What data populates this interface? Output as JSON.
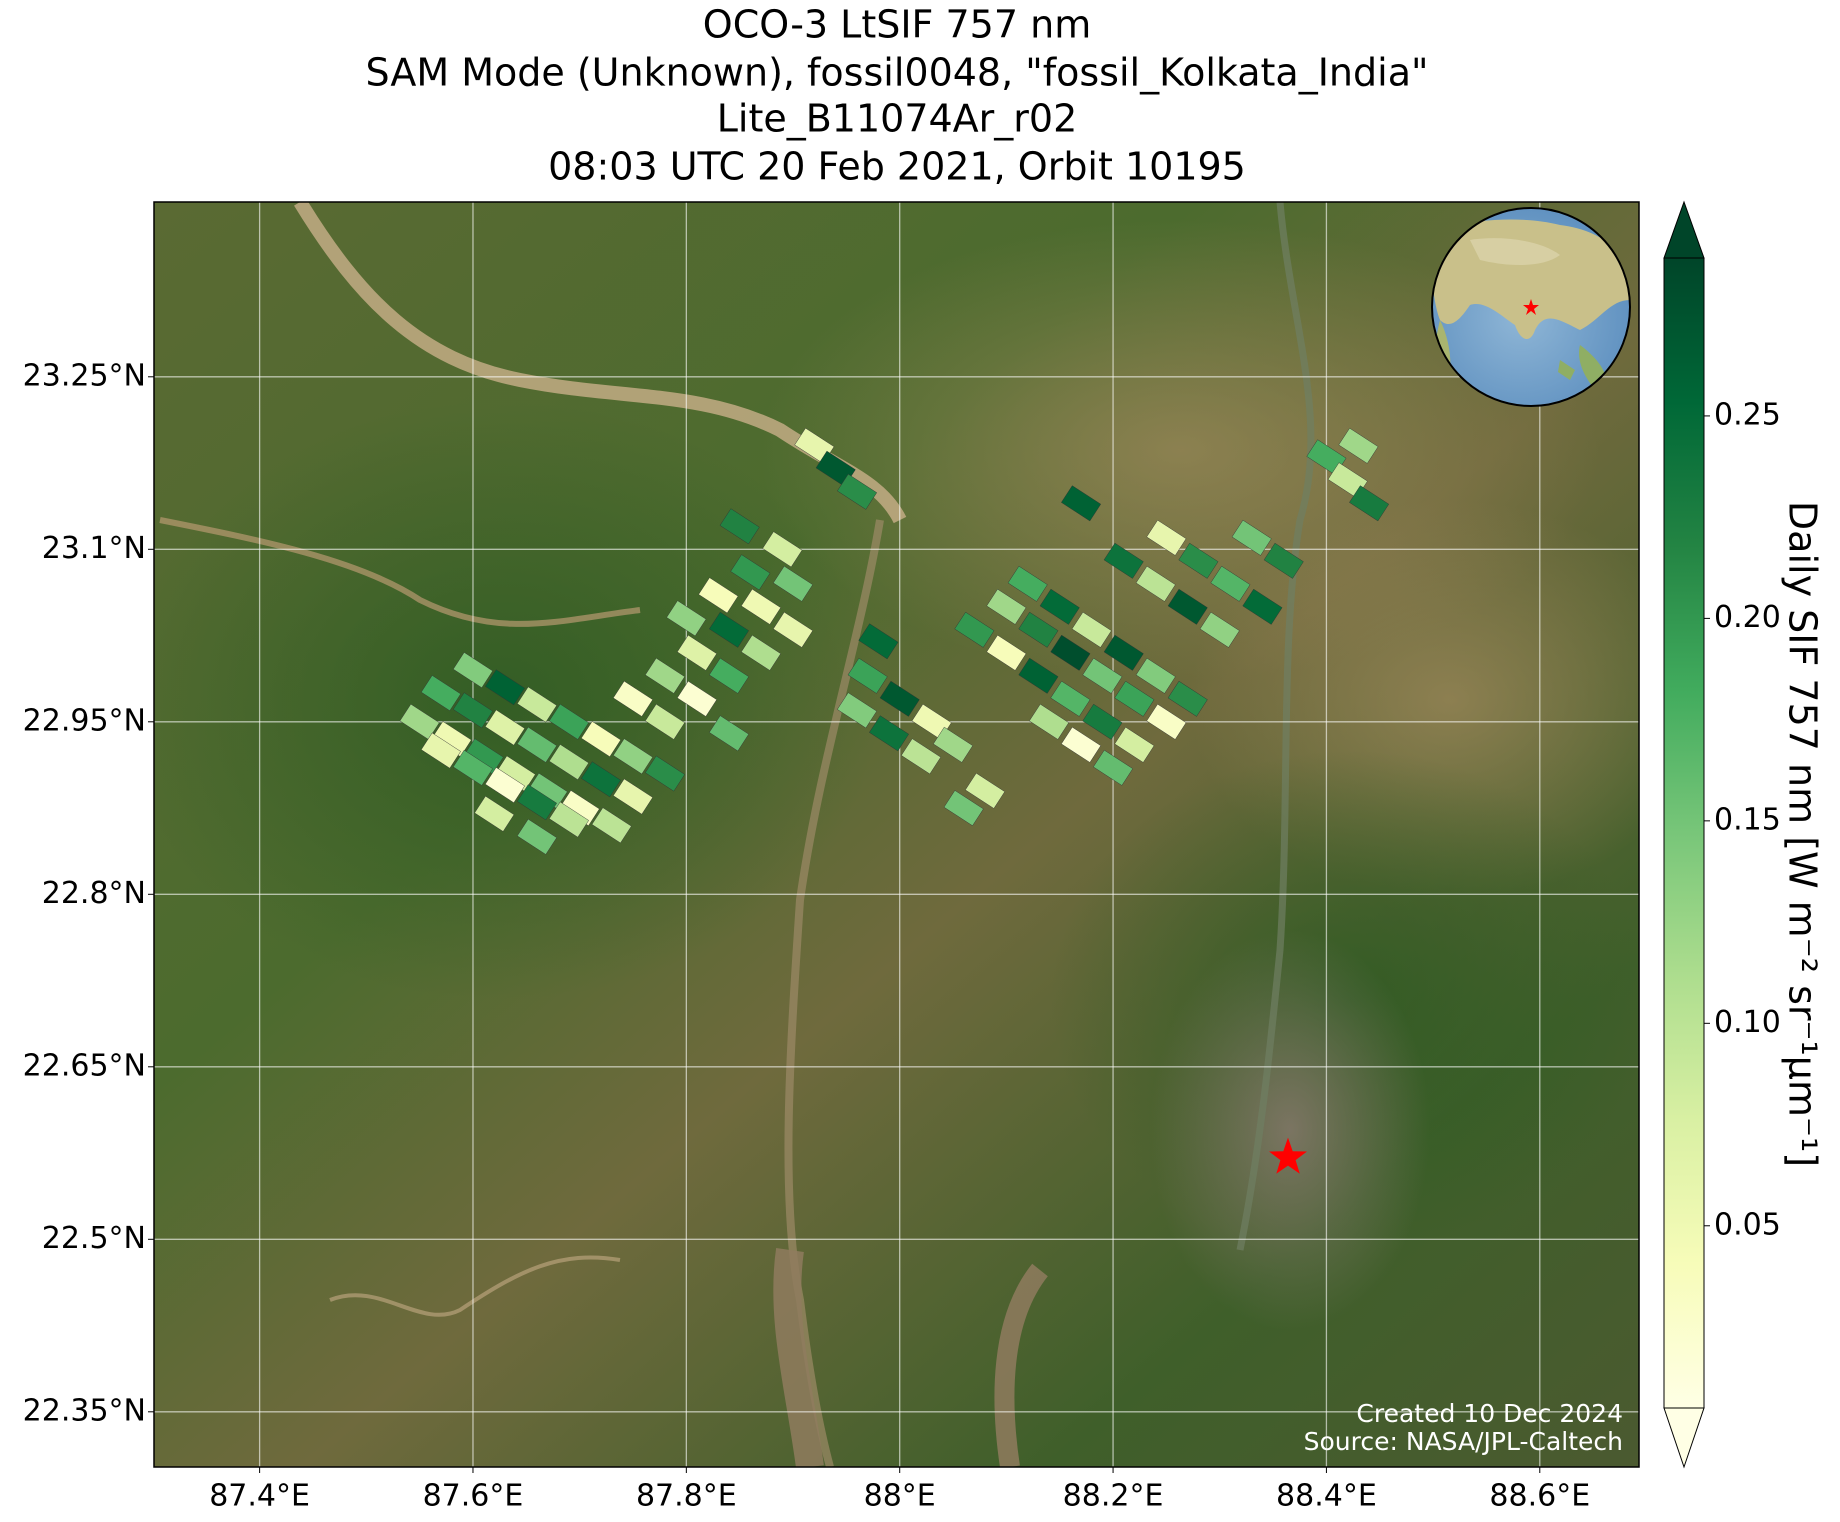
{
  "chart_data": {
    "type": "map",
    "title": [
      "OCO-3 LtSIF 757 nm",
      "SAM Mode (Unknown), fossil0048, \"fossil_Kolkata_India\"",
      "Lite_B11074Ar_r02",
      "08:03 UTC 20 Feb 2021, Orbit 10195"
    ],
    "xlim": [
      87.301,
      88.693
    ],
    "ylim": [
      22.302,
      23.402
    ],
    "xticks": [
      {
        "value": 87.4,
        "label": "87.4°E"
      },
      {
        "value": 87.6,
        "label": "87.6°E"
      },
      {
        "value": 87.8,
        "label": "87.8°E"
      },
      {
        "value": 88.0,
        "label": "88°E"
      },
      {
        "value": 88.2,
        "label": "88.2°E"
      },
      {
        "value": 88.4,
        "label": "88.4°E"
      },
      {
        "value": 88.6,
        "label": "88.6°E"
      }
    ],
    "yticks": [
      {
        "value": 22.35,
        "label": "22.35°N"
      },
      {
        "value": 22.5,
        "label": "22.5°N"
      },
      {
        "value": 22.65,
        "label": "22.65°N"
      },
      {
        "value": 22.8,
        "label": "22.8°N"
      },
      {
        "value": 22.95,
        "label": "22.95°N"
      },
      {
        "value": 23.1,
        "label": "23.1°N"
      },
      {
        "value": 23.25,
        "label": "23.25°N"
      }
    ],
    "grid": true,
    "x": [
      87.55,
      87.58,
      87.61,
      87.64,
      87.67,
      87.7,
      87.73,
      87.57,
      87.6,
      87.63,
      87.66,
      87.69,
      87.72,
      87.75,
      87.6,
      87.63,
      87.66,
      87.69,
      87.72,
      87.75,
      87.78,
      87.57,
      87.6,
      87.63,
      87.66,
      87.69,
      87.62,
      87.66,
      87.75,
      87.78,
      87.81,
      87.84,
      87.87,
      87.9,
      87.78,
      87.81,
      87.84,
      87.87,
      87.9,
      87.8,
      87.83,
      87.86,
      87.89,
      87.84,
      87.85,
      87.92,
      87.94,
      87.96,
      87.96,
      87.99,
      88.02,
      87.97,
      88.0,
      88.03,
      88.05,
      88.08,
      88.06,
      87.98,
      88.07,
      88.1,
      88.13,
      88.16,
      88.19,
      88.22,
      88.1,
      88.13,
      88.16,
      88.19,
      88.22,
      88.25,
      88.12,
      88.15,
      88.18,
      88.21,
      88.24,
      88.27,
      88.14,
      88.17,
      88.2,
      88.21,
      88.24,
      88.27,
      88.3,
      88.25,
      88.28,
      88.31,
      88.34,
      88.33,
      88.36,
      88.17,
      88.4,
      88.42,
      88.44,
      88.43
    ],
    "y": [
      22.95,
      22.935,
      22.92,
      22.905,
      22.89,
      22.875,
      22.86,
      22.975,
      22.96,
      22.945,
      22.93,
      22.915,
      22.9,
      22.885,
      22.995,
      22.98,
      22.965,
      22.95,
      22.935,
      22.92,
      22.905,
      22.925,
      22.91,
      22.895,
      22.88,
      22.865,
      22.87,
      22.85,
      22.97,
      22.99,
      23.01,
      23.03,
      23.05,
      23.07,
      22.95,
      22.97,
      22.99,
      23.01,
      23.03,
      23.04,
      23.06,
      23.08,
      23.1,
      22.94,
      23.12,
      23.19,
      23.17,
      23.15,
      22.96,
      22.94,
      22.92,
      22.99,
      22.97,
      22.95,
      22.93,
      22.89,
      22.875,
      23.02,
      23.03,
      23.01,
      22.99,
      22.97,
      22.95,
      22.93,
      23.05,
      23.03,
      23.01,
      22.99,
      22.97,
      22.95,
      23.07,
      23.05,
      23.03,
      23.01,
      22.99,
      22.97,
      22.95,
      22.93,
      22.91,
      23.09,
      23.07,
      23.05,
      23.03,
      23.11,
      23.09,
      23.07,
      23.05,
      23.11,
      23.09,
      23.14,
      23.18,
      23.16,
      23.14,
      23.19
    ],
    "values": [
      0.12,
      0.05,
      0.2,
      0.08,
      0.15,
      0.03,
      0.1,
      0.18,
      0.22,
      0.07,
      0.16,
      0.11,
      0.24,
      0.06,
      0.14,
      0.26,
      0.09,
      0.19,
      0.04,
      0.13,
      0.21,
      0.06,
      0.17,
      0.02,
      0.23,
      0.1,
      0.08,
      0.15,
      0.03,
      0.12,
      0.07,
      0.25,
      0.05,
      0.15,
      0.09,
      0.02,
      0.18,
      0.11,
      0.06,
      0.13,
      0.04,
      0.2,
      0.08,
      0.16,
      0.22,
      0.06,
      0.27,
      0.21,
      0.14,
      0.24,
      0.1,
      0.19,
      0.27,
      0.05,
      0.12,
      0.08,
      0.15,
      0.25,
      0.2,
      0.04,
      0.26,
      0.17,
      0.23,
      0.08,
      0.12,
      0.22,
      0.28,
      0.15,
      0.19,
      0.03,
      0.18,
      0.25,
      0.09,
      0.27,
      0.14,
      0.21,
      0.11,
      0.02,
      0.16,
      0.24,
      0.1,
      0.27,
      0.13,
      0.06,
      0.21,
      0.17,
      0.25,
      0.15,
      0.22,
      0.26,
      0.18,
      0.09,
      0.23,
      0.12
    ],
    "colormap": [
      "#ffffe5",
      "#f7fcb9",
      "#d9f0a3",
      "#addd8e",
      "#78c679",
      "#41ab5d",
      "#238443",
      "#006837",
      "#004529"
    ],
    "clim": [
      0.005,
      0.289
    ],
    "cticks": [
      0.05,
      {
        "value": 0.1,
        "label": "0.10"
      },
      0.15,
      {
        "value": 0.2,
        "label": "0.20"
      },
      0.25
    ],
    "colorbar_label": "Daily SIF 757 nm [W m⁻² sr⁻¹μm⁻¹]",
    "target": {
      "x": 88.364,
      "y": 22.571,
      "color": "#ff0000"
    },
    "annotations": [
      "Created 10 Dec 2024",
      "Source: NASA/JPL-Caltech"
    ]
  }
}
